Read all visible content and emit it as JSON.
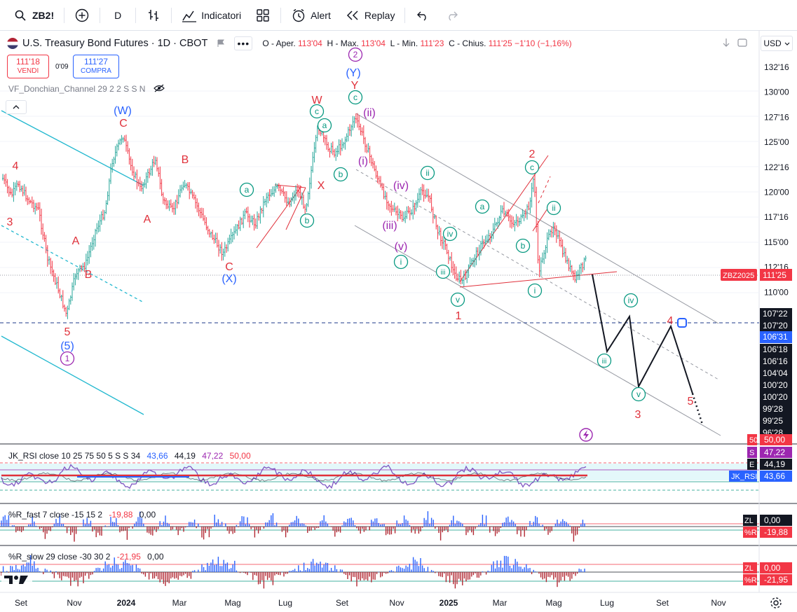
{
  "toolbar": {
    "symbol": "ZB2!",
    "interval": "D",
    "indicators_label": "Indicatori",
    "alert_label": "Alert",
    "replay_label": "Replay",
    "icons": [
      "search-icon",
      "add-symbol-icon",
      "bar-style-icon",
      "indicators-icon",
      "layouts-icon",
      "alert-icon",
      "replay-icon",
      "undo-icon",
      "redo-icon"
    ]
  },
  "legend": {
    "symbol_full": "U.S. Treasury Bond Futures · 1D · CBOT",
    "open_label": "O - Aper.",
    "open": "113'04",
    "high_label": "H - Max.",
    "high": "113'04",
    "low_label": "L - Min.",
    "low": "111'23",
    "close_label": "C - Chius.",
    "close": "111'25",
    "change": "−1'10 (−1,16%)",
    "sell_price": "111'18",
    "sell_label": "VENDI",
    "spread": "0'09",
    "buy_price": "111'27",
    "buy_label": "COMPRA",
    "indicator": "VF_Donchian_Channel 29 2 2 S S N",
    "currency": "USD"
  },
  "price_axis": {
    "ticks": [
      "132'16",
      "130'00",
      "127'16",
      "125'00",
      "122'16",
      "120'00",
      "117'16",
      "115'00",
      "112'16",
      "110'00"
    ],
    "lower_labels": [
      "107'22",
      "107'20",
      "106'31",
      "106'18",
      "106'16",
      "104'04",
      "100'20",
      "100'20",
      "99'28",
      "99'25",
      "96'28"
    ],
    "current_symbol": "ZBZ2025",
    "current_price": "111'25"
  },
  "time_axis": {
    "labels": [
      "Set",
      "Nov",
      "2024",
      "Mar",
      "Mag",
      "Lug",
      "Set",
      "Nov",
      "2025",
      "Mar",
      "Mag",
      "Lug",
      "Set",
      "Nov"
    ]
  },
  "rsi_panel": {
    "legend": "JK_RSI close 10 25 75 50 5 S S 34",
    "values": [
      "43,66",
      "44,19",
      "47,22",
      "50,00"
    ],
    "tags": [
      {
        "letter": "50",
        "value": "50,00",
        "color": "#f23645"
      },
      {
        "letter": "S",
        "value": "47,22",
        "color": "#9c27b0"
      },
      {
        "letter": "E",
        "value": "44,19",
        "color": "#131722"
      },
      {
        "letter": "JK_RSI",
        "value": "43,66",
        "color": "#2962ff"
      }
    ]
  },
  "wr_fast_panel": {
    "legend": "%R_fast 7 close -15 15 2",
    "values": [
      "-19,88",
      "0,00"
    ],
    "tags": [
      {
        "letter": "ZL",
        "value": "0,00"
      },
      {
        "letter": "%R",
        "value": "-19,88"
      }
    ]
  },
  "wr_slow_panel": {
    "legend": "%R_slow 29 close -30 30 2",
    "values": [
      "-21,95",
      "0,00"
    ],
    "tags": [
      {
        "letter": "ZL",
        "value": "0,00"
      },
      {
        "letter": "%R",
        "value": "-21,95"
      }
    ]
  },
  "wave_labels": {
    "circled": [
      "1",
      "2",
      "a",
      "b",
      "c",
      "i",
      "ii",
      "iii",
      "iv",
      "v"
    ],
    "letters": [
      "(W)",
      "(X)",
      "(Y)",
      "(5)",
      "W",
      "X",
      "Y",
      "A",
      "B",
      "C",
      "(i)",
      "(ii)",
      "(iii)",
      "(iv)",
      "(v)",
      "1",
      "2",
      "3",
      "4",
      "5"
    ]
  },
  "colors": {
    "up": "#26a69a",
    "down": "#f23645",
    "bar": "#2a2e39",
    "wave_red": "#e0313b",
    "wave_blue": "#2962ff",
    "wave_green": "#089981",
    "wave_purple": "#9c27b0",
    "channel_cyan": "#22b8cf",
    "channel_gray": "#9598a1"
  }
}
